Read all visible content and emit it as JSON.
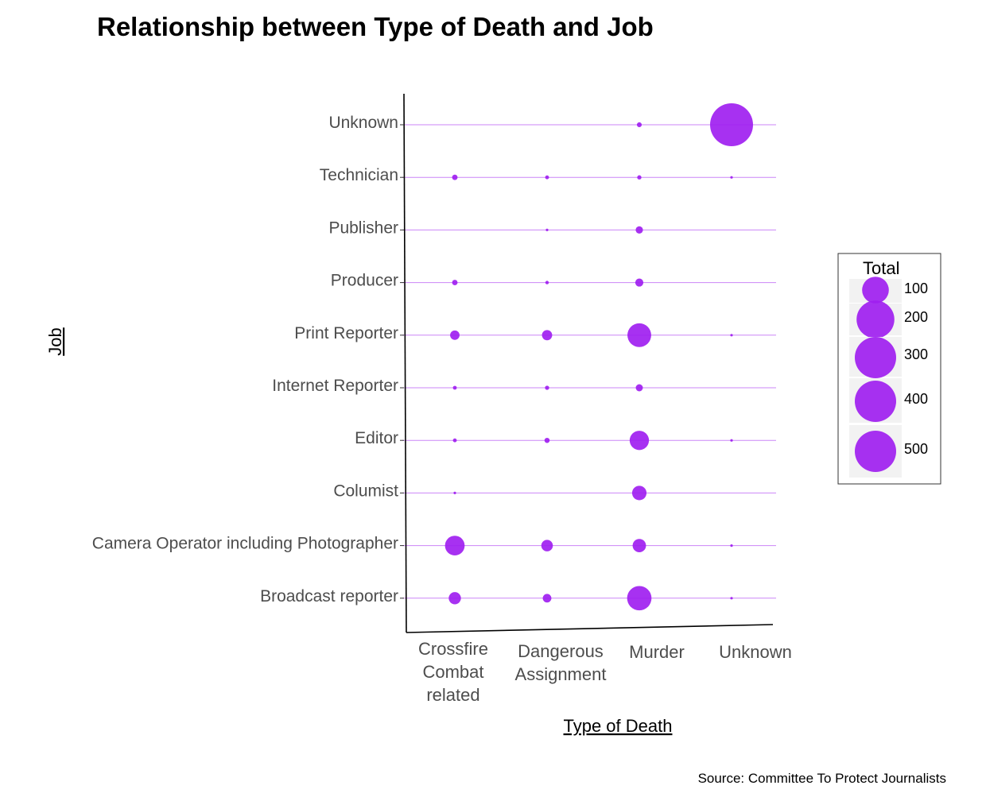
{
  "chart_data": {
    "type": "scatter",
    "title": "Relationship between Type of Death and Job",
    "xlabel": "Type of Death",
    "ylabel": "Job",
    "source": "Source: Committee To Protect Journalists",
    "x_categories": [
      "Crossfire Combat related",
      "Dangerous Assignment",
      "Murder",
      "Unknown"
    ],
    "x_tick_lines": [
      [
        "Crossfire",
        "Combat",
        "related"
      ],
      [
        "Dangerous",
        "Assignment"
      ],
      [
        "Murder"
      ],
      [
        "Unknown"
      ]
    ],
    "y_categories": [
      "Broadcast reporter",
      "Camera Operator including Photographer",
      "Columist",
      "Editor",
      "Internet Reporter",
      "Print Reporter",
      "Producer",
      "Publisher",
      "Technician",
      "Unknown"
    ],
    "size_variable": "Total",
    "legend": {
      "title": "Total",
      "position": "right",
      "values": [
        100,
        200,
        300,
        400,
        500
      ]
    },
    "points": [
      {
        "y": "Unknown",
        "x": "Murder",
        "total": 8
      },
      {
        "y": "Unknown",
        "x": "Unknown",
        "total": 620
      },
      {
        "y": "Technician",
        "x": "Crossfire Combat related",
        "total": 10
      },
      {
        "y": "Technician",
        "x": "Dangerous Assignment",
        "total": 5
      },
      {
        "y": "Technician",
        "x": "Murder",
        "total": 6
      },
      {
        "y": "Technician",
        "x": "Unknown",
        "total": 1
      },
      {
        "y": "Publisher",
        "x": "Dangerous Assignment",
        "total": 1
      },
      {
        "y": "Publisher",
        "x": "Murder",
        "total": 18
      },
      {
        "y": "Producer",
        "x": "Crossfire Combat related",
        "total": 10
      },
      {
        "y": "Producer",
        "x": "Dangerous Assignment",
        "total": 4
      },
      {
        "y": "Producer",
        "x": "Murder",
        "total": 22
      },
      {
        "y": "Print Reporter",
        "x": "Crossfire Combat related",
        "total": 30
      },
      {
        "y": "Print Reporter",
        "x": "Dangerous Assignment",
        "total": 35
      },
      {
        "y": "Print Reporter",
        "x": "Murder",
        "total": 190
      },
      {
        "y": "Print Reporter",
        "x": "Unknown",
        "total": 1
      },
      {
        "y": "Internet Reporter",
        "x": "Crossfire Combat related",
        "total": 5
      },
      {
        "y": "Internet Reporter",
        "x": "Dangerous Assignment",
        "total": 6
      },
      {
        "y": "Internet Reporter",
        "x": "Murder",
        "total": 17
      },
      {
        "y": "Editor",
        "x": "Crossfire Combat related",
        "total": 5
      },
      {
        "y": "Editor",
        "x": "Dangerous Assignment",
        "total": 9
      },
      {
        "y": "Editor",
        "x": "Murder",
        "total": 125
      },
      {
        "y": "Editor",
        "x": "Unknown",
        "total": 1
      },
      {
        "y": "Columist",
        "x": "Crossfire Combat related",
        "total": 1
      },
      {
        "y": "Columist",
        "x": "Murder",
        "total": 70
      },
      {
        "y": "Camera Operator including Photographer",
        "x": "Crossfire Combat related",
        "total": 130
      },
      {
        "y": "Camera Operator including Photographer",
        "x": "Dangerous Assignment",
        "total": 45
      },
      {
        "y": "Camera Operator including Photographer",
        "x": "Murder",
        "total": 60
      },
      {
        "y": "Camera Operator including Photographer",
        "x": "Unknown",
        "total": 1
      },
      {
        "y": "Broadcast reporter",
        "x": "Crossfire Combat related",
        "total": 50
      },
      {
        "y": "Broadcast reporter",
        "x": "Dangerous Assignment",
        "total": 25
      },
      {
        "y": "Broadcast reporter",
        "x": "Murder",
        "total": 200
      },
      {
        "y": "Broadcast reporter",
        "x": "Unknown",
        "total": 1
      }
    ],
    "grid": "horizontal lines per job category",
    "colors": {
      "bubble": "#a020f0",
      "row_line": "#a020f0",
      "legend_key_bg": "#f2f2f2"
    }
  }
}
